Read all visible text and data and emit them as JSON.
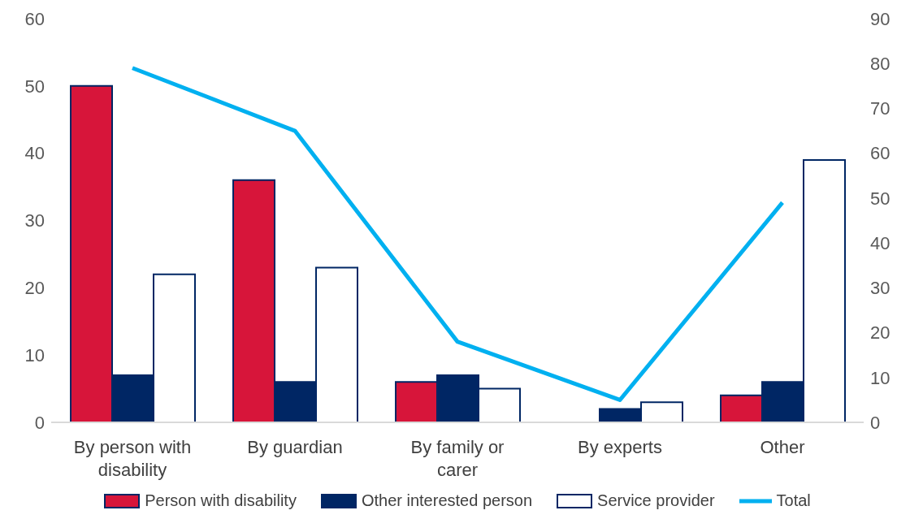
{
  "chart_data": {
    "type": "bar",
    "categories": [
      "By person with disability",
      "By guardian",
      "By family or carer",
      "By experts",
      "Other"
    ],
    "series": [
      {
        "name": "Person with disability",
        "color": "#d7153a",
        "values": [
          50,
          36,
          6,
          0,
          4
        ]
      },
      {
        "name": "Other interested person",
        "color": "#002664",
        "values": [
          7,
          6,
          7,
          2,
          6
        ]
      },
      {
        "name": "Service provider",
        "color": "#ffffff",
        "values": [
          22,
          23,
          5,
          3,
          39
        ]
      },
      {
        "name": "Total",
        "type": "line",
        "axis": "y2",
        "color": "#00b0f0",
        "values": [
          79,
          65,
          18,
          5,
          49
        ]
      }
    ],
    "ylim": [
      0,
      60
    ],
    "yticks": [
      0,
      10,
      20,
      30,
      40,
      50,
      60
    ],
    "y2lim": [
      0,
      90
    ],
    "y2ticks": [
      0,
      10,
      20,
      30,
      40,
      50,
      60,
      70,
      80,
      90
    ],
    "grid": false,
    "legend": "bottom"
  }
}
